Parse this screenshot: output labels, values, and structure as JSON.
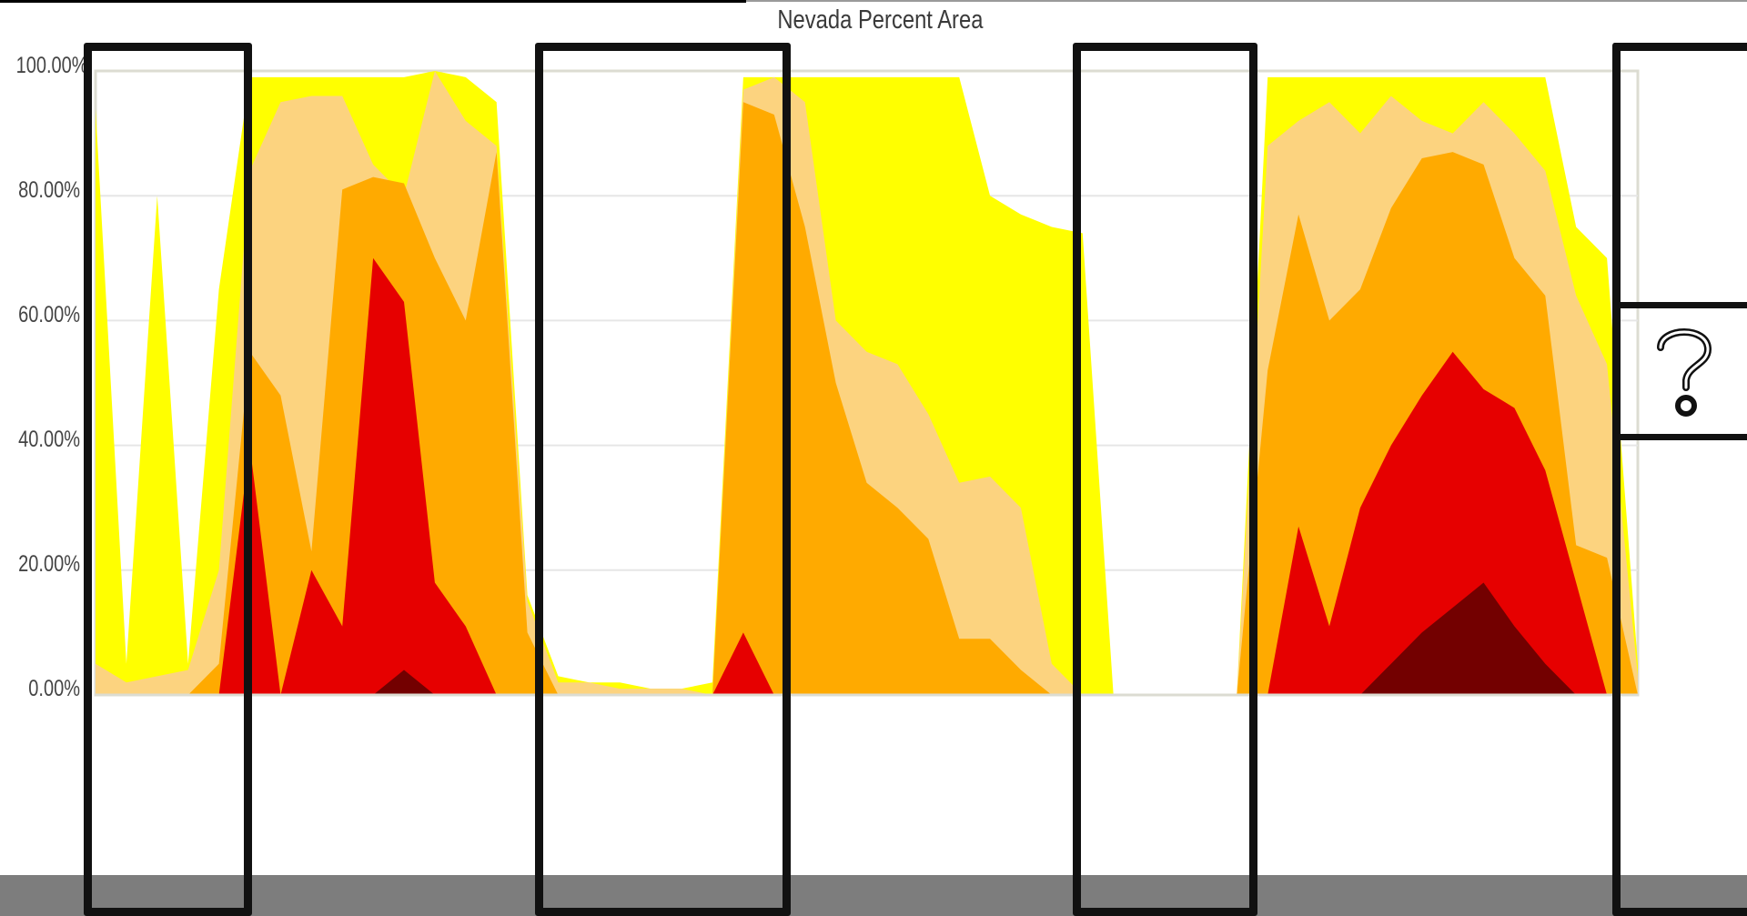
{
  "chart_data": {
    "type": "area",
    "title": "Nevada Percent Area",
    "ylim": [
      0,
      100
    ],
    "y_ticks": [
      "0.00%",
      "20.00%",
      "40.00%",
      "60.00%",
      "80.00%",
      "100.00%"
    ],
    "grid": true,
    "x_labels": [],
    "note_hidden_regions": "four regions of the timeline are covered by black boxes; the last one contains a question mark",
    "colors": [
      "#FFFF00",
      "#FCD37F",
      "#FFAA00",
      "#E60000",
      "#730000"
    ],
    "x": [
      0,
      2,
      4,
      6,
      8,
      10,
      12,
      14,
      16,
      18,
      20,
      22,
      24,
      26,
      28,
      30,
      32,
      34,
      36,
      38,
      40,
      42,
      44,
      46,
      48,
      50,
      52,
      54,
      56,
      58,
      60,
      62,
      64,
      66,
      68,
      70,
      72,
      74,
      76,
      78,
      80,
      82,
      84,
      86,
      88,
      90,
      92,
      94,
      96,
      98,
      100
    ],
    "series": [
      {
        "values": [
          94,
          5,
          80,
          5,
          65,
          99,
          99,
          99,
          99,
          99,
          99,
          100,
          99,
          95,
          16,
          3,
          2,
          2,
          1,
          1,
          2,
          99,
          99,
          99,
          99,
          99,
          99,
          99,
          99,
          80,
          77,
          75,
          74,
          0,
          0,
          0,
          0,
          0,
          99,
          99,
          99,
          99,
          99,
          99,
          99,
          99,
          99,
          99,
          75,
          70,
          5
        ]
      },
      {
        "values": [
          5,
          2,
          3,
          4,
          20,
          84,
          95,
          96,
          96,
          85,
          80,
          100,
          92,
          88,
          15,
          2,
          2,
          1,
          1,
          1,
          0,
          97,
          99,
          95,
          60,
          55,
          53,
          45,
          34,
          35,
          30,
          5,
          0,
          0,
          0,
          0,
          0,
          0,
          88,
          92,
          95,
          90,
          96,
          92,
          90,
          95,
          90,
          84,
          64,
          53,
          3
        ]
      },
      {
        "values": [
          0,
          0,
          0,
          0,
          5,
          55,
          48,
          23,
          81,
          83,
          82,
          70,
          60,
          87,
          10,
          0,
          0,
          0,
          0,
          0,
          0,
          95,
          93,
          75,
          50,
          34,
          30,
          25,
          9,
          9,
          4,
          0,
          0,
          0,
          0,
          0,
          0,
          0,
          52,
          77,
          60,
          65,
          78,
          86,
          87,
          85,
          70,
          64,
          24,
          22,
          0
        ]
      },
      {
        "values": [
          0,
          0,
          0,
          0,
          0,
          40,
          0,
          20,
          11,
          70,
          63,
          18,
          11,
          0,
          0,
          0,
          0,
          0,
          0,
          0,
          0,
          10,
          0,
          0,
          0,
          0,
          0,
          0,
          0,
          0,
          0,
          0,
          0,
          0,
          0,
          0,
          0,
          0,
          0,
          27,
          11,
          30,
          40,
          48,
          55,
          49,
          46,
          36,
          18,
          0,
          0
        ]
      },
      {
        "values": [
          0,
          0,
          0,
          0,
          0,
          0,
          0,
          0,
          0,
          0,
          4,
          0,
          0,
          0,
          0,
          0,
          0,
          0,
          0,
          0,
          0,
          0,
          0,
          0,
          0,
          0,
          0,
          0,
          0,
          0,
          0,
          0,
          0,
          0,
          0,
          0,
          0,
          0,
          0,
          0,
          0,
          0,
          5,
          10,
          14,
          18,
          11,
          5,
          0,
          0,
          0
        ]
      }
    ]
  }
}
